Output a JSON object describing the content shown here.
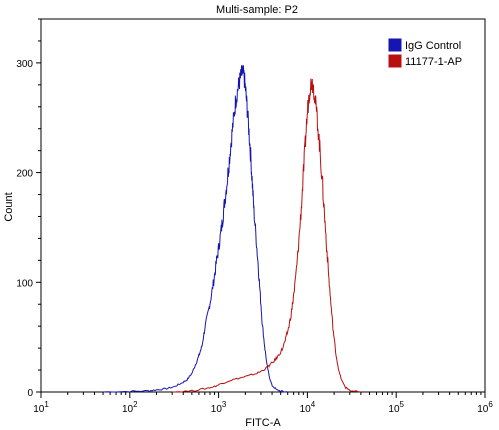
{
  "chart_data": {
    "type": "line",
    "title": "Multi-sample: P2",
    "xlabel": "FITC-A",
    "ylabel": "Count",
    "x_scale": "log10",
    "xlim": [
      10,
      1000000
    ],
    "ylim": [
      0,
      340
    ],
    "x_ticks": [
      {
        "value": 10,
        "base": "10",
        "exp": "1"
      },
      {
        "value": 100,
        "base": "10",
        "exp": "2"
      },
      {
        "value": 1000,
        "base": "10",
        "exp": "3"
      },
      {
        "value": 10000,
        "base": "10",
        "exp": "4"
      },
      {
        "value": 100000,
        "base": "10",
        "exp": "5"
      },
      {
        "value": 1000000,
        "base": "10",
        "exp": "6"
      }
    ],
    "y_ticks": [
      0,
      100,
      200,
      300
    ],
    "legend_position": "top-right",
    "series": [
      {
        "name": "IgG Control",
        "color": "#1515b0",
        "points": [
          [
            50,
            0
          ],
          [
            100,
            0.5
          ],
          [
            160,
            1
          ],
          [
            200,
            2
          ],
          [
            260,
            3
          ],
          [
            320,
            5
          ],
          [
            380,
            8
          ],
          [
            440,
            11
          ],
          [
            500,
            17
          ],
          [
            550,
            25
          ],
          [
            600,
            33
          ],
          [
            650,
            42
          ],
          [
            700,
            58
          ],
          [
            760,
            72
          ],
          [
            820,
            86
          ],
          [
            880,
            101
          ],
          [
            940,
            117
          ],
          [
            1000,
            131
          ],
          [
            1060,
            145
          ],
          [
            1120,
            160
          ],
          [
            1180,
            176
          ],
          [
            1250,
            193
          ],
          [
            1320,
            212
          ],
          [
            1400,
            232
          ],
          [
            1480,
            250
          ],
          [
            1560,
            266
          ],
          [
            1640,
            276
          ],
          [
            1720,
            283
          ],
          [
            1800,
            289
          ],
          [
            1870,
            291
          ],
          [
            1940,
            287
          ],
          [
            2020,
            274
          ],
          [
            2100,
            258
          ],
          [
            2200,
            237
          ],
          [
            2300,
            215
          ],
          [
            2400,
            190
          ],
          [
            2500,
            165
          ],
          [
            2650,
            140
          ],
          [
            2800,
            114
          ],
          [
            2950,
            88
          ],
          [
            3100,
            63
          ],
          [
            3300,
            42
          ],
          [
            3500,
            25
          ],
          [
            3750,
            13
          ],
          [
            4000,
            6
          ],
          [
            4500,
            2
          ],
          [
            5200,
            0.5
          ],
          [
            6000,
            0
          ]
        ]
      },
      {
        "name": "11177-1-AP",
        "color": "#b81010",
        "points": [
          [
            300,
            0
          ],
          [
            500,
            1
          ],
          [
            700,
            3
          ],
          [
            900,
            5
          ],
          [
            1100,
            8
          ],
          [
            1400,
            11
          ],
          [
            1800,
            13
          ],
          [
            2200,
            15
          ],
          [
            2700,
            17
          ],
          [
            3200,
            20
          ],
          [
            3700,
            24
          ],
          [
            4200,
            28
          ],
          [
            4700,
            33
          ],
          [
            5200,
            39
          ],
          [
            5700,
            48
          ],
          [
            6200,
            60
          ],
          [
            6700,
            76
          ],
          [
            7200,
            96
          ],
          [
            7700,
            120
          ],
          [
            8200,
            148
          ],
          [
            8700,
            178
          ],
          [
            9200,
            210
          ],
          [
            9700,
            240
          ],
          [
            10200,
            263
          ],
          [
            10700,
            278
          ],
          [
            11200,
            283
          ],
          [
            11700,
            279
          ],
          [
            12300,
            265
          ],
          [
            13000,
            246
          ],
          [
            13800,
            222
          ],
          [
            14600,
            196
          ],
          [
            15400,
            168
          ],
          [
            16300,
            138
          ],
          [
            17300,
            108
          ],
          [
            18400,
            80
          ],
          [
            19600,
            55
          ],
          [
            21000,
            34
          ],
          [
            22600,
            19
          ],
          [
            24500,
            10
          ],
          [
            27000,
            4
          ],
          [
            31000,
            1
          ],
          [
            40000,
            0
          ]
        ]
      }
    ]
  }
}
